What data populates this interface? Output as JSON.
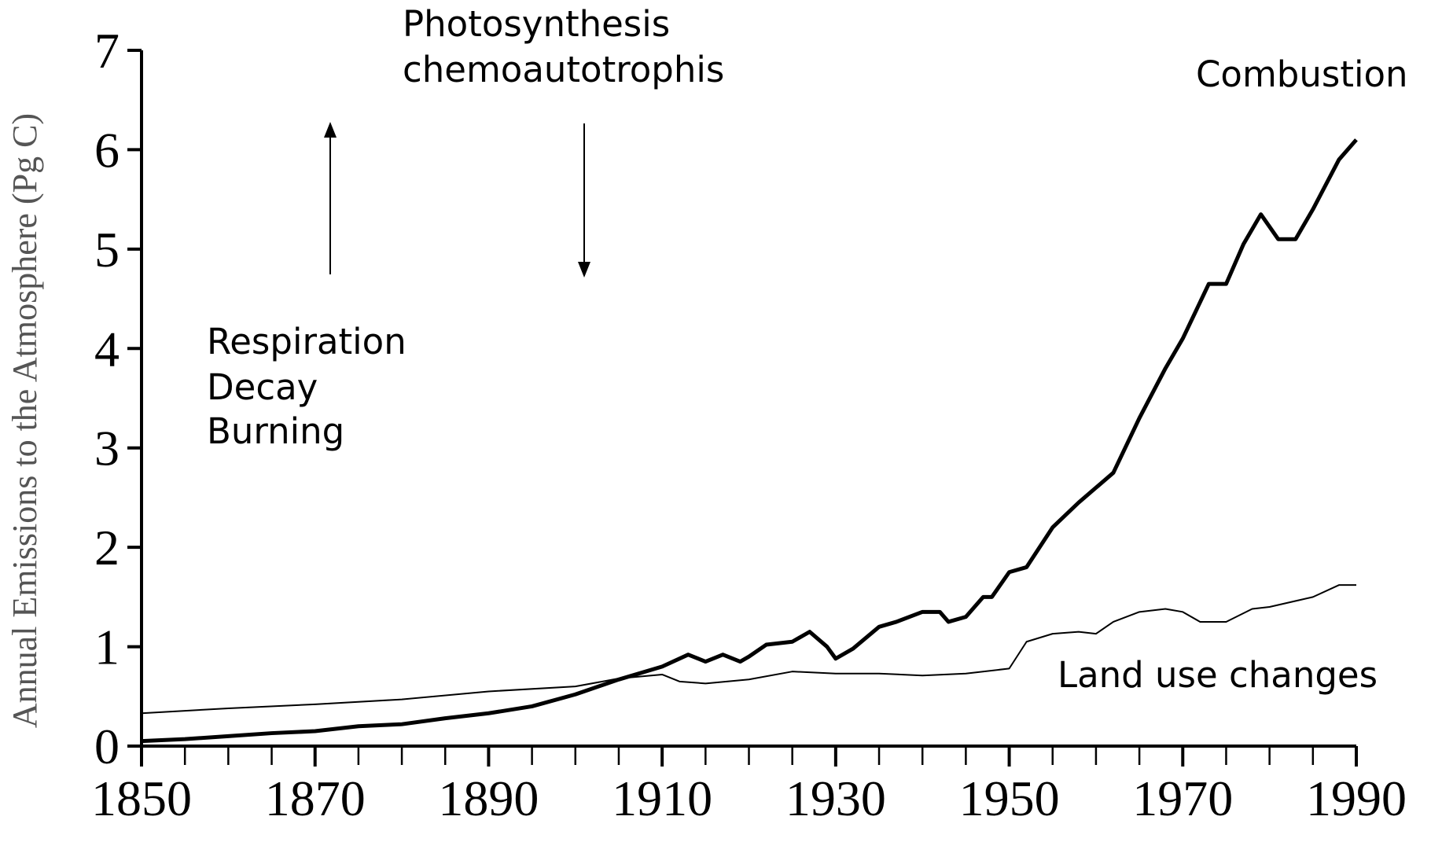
{
  "chart_data": {
    "type": "line",
    "ylabel": "Annual Emissions to the Atmosphere (Pg C)",
    "annotations": [
      "Photosynthesis",
      "chemoautotrophis",
      "Respiration",
      "Decay",
      "Burning"
    ],
    "xlim": [
      1850,
      1990
    ],
    "ylim": [
      0,
      7
    ],
    "xticks": [
      1850,
      1870,
      1890,
      1910,
      1930,
      1950,
      1970,
      1990
    ],
    "yticks": [
      0,
      1,
      2,
      3,
      4,
      5,
      6,
      7
    ],
    "series": [
      {
        "name": "Combustion",
        "color": "#000000",
        "x": [
          1850,
          1855,
          1860,
          1865,
          1870,
          1875,
          1880,
          1885,
          1890,
          1895,
          1900,
          1905,
          1910,
          1913,
          1915,
          1917,
          1919,
          1920,
          1922,
          1925,
          1927,
          1929,
          1930,
          1932,
          1935,
          1937,
          1940,
          1942,
          1943,
          1945,
          1947,
          1948,
          1950,
          1952,
          1955,
          1958,
          1960,
          1962,
          1965,
          1968,
          1970,
          1973,
          1975,
          1977,
          1979,
          1981,
          1983,
          1985,
          1988,
          1990
        ],
        "values": [
          0.05,
          0.07,
          0.1,
          0.13,
          0.15,
          0.2,
          0.22,
          0.28,
          0.33,
          0.4,
          0.52,
          0.67,
          0.8,
          0.92,
          0.85,
          0.92,
          0.85,
          0.9,
          1.02,
          1.05,
          1.15,
          1.0,
          0.88,
          0.98,
          1.2,
          1.25,
          1.35,
          1.35,
          1.25,
          1.3,
          1.5,
          1.5,
          1.75,
          1.8,
          2.2,
          2.45,
          2.6,
          2.75,
          3.3,
          3.8,
          4.1,
          4.65,
          4.65,
          5.05,
          5.35,
          5.1,
          5.1,
          5.4,
          5.9,
          6.1
        ]
      },
      {
        "name": "Land use changes",
        "color": "#000000",
        "x": [
          1850,
          1860,
          1870,
          1880,
          1890,
          1900,
          1905,
          1910,
          1912,
          1915,
          1920,
          1925,
          1930,
          1935,
          1940,
          1945,
          1950,
          1952,
          1955,
          1958,
          1960,
          1962,
          1965,
          1968,
          1970,
          1972,
          1975,
          1978,
          1980,
          1985,
          1988,
          1990
        ],
        "values": [
          0.33,
          0.38,
          0.42,
          0.47,
          0.55,
          0.6,
          0.68,
          0.72,
          0.65,
          0.63,
          0.67,
          0.75,
          0.73,
          0.73,
          0.71,
          0.73,
          0.78,
          1.05,
          1.13,
          1.15,
          1.13,
          1.25,
          1.35,
          1.38,
          1.35,
          1.25,
          1.25,
          1.38,
          1.4,
          1.5,
          1.62,
          1.62
        ]
      }
    ]
  }
}
